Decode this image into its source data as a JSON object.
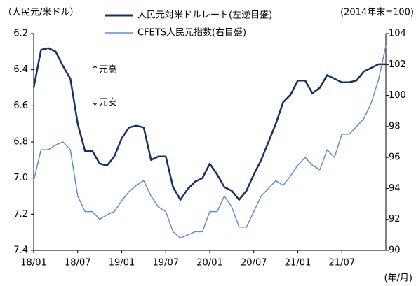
{
  "chart_data": {
    "type": "line",
    "y_label": "（人民元/米ドル）",
    "y2_label": "(2014年末=100)",
    "x_label": "(年/月)",
    "annotations": [
      "↑元高",
      "↓元安"
    ],
    "categories": [
      "18/01",
      null,
      null,
      null,
      null,
      null,
      "18/07",
      null,
      null,
      null,
      null,
      null,
      "19/01",
      null,
      null,
      null,
      null,
      null,
      "19/07",
      null,
      null,
      null,
      null,
      null,
      "20/01",
      null,
      null,
      null,
      null,
      null,
      "20/07",
      null,
      null,
      null,
      null,
      null,
      "21/01",
      null,
      null,
      null,
      null,
      null,
      "21/07",
      null,
      null,
      null,
      null,
      null,
      null
    ],
    "ylim": [
      7.4,
      6.2
    ],
    "yticks": [
      6.2,
      6.4,
      6.6,
      6.8,
      {
        "value": 7,
        "label": "7.0"
      },
      7.2,
      7.4
    ],
    "y2lim": [
      90,
      104
    ],
    "y2ticks": [
      90,
      92,
      94,
      96,
      98,
      100,
      102,
      104
    ],
    "series": [
      {
        "name": "人民元対米ドルレート(左逆目盛)",
        "color": "#14306a",
        "values": [
          6.5,
          6.29,
          6.28,
          6.3,
          6.38,
          6.45,
          6.7,
          6.85,
          6.85,
          6.92,
          6.93,
          6.88,
          6.78,
          6.72,
          6.71,
          6.72,
          6.9,
          6.88,
          6.88,
          7.05,
          7.12,
          7.06,
          7.02,
          7.0,
          6.92,
          6.98,
          7.05,
          7.07,
          7.12,
          7.07,
          6.98,
          6.9,
          6.8,
          6.7,
          6.58,
          6.54,
          6.46,
          6.46,
          6.53,
          6.5,
          6.43,
          6.45,
          6.47,
          6.47,
          6.46,
          6.41,
          6.39,
          6.37,
          6.37
        ]
      },
      {
        "name": "CFETS人民元指数(右目盛)",
        "color": "#5b8fd6",
        "axis": "y2",
        "values": [
          94.5,
          96.5,
          96.5,
          96.8,
          97.0,
          96.5,
          93.5,
          92.5,
          92.5,
          92.0,
          92.3,
          92.5,
          93.2,
          93.8,
          94.2,
          94.5,
          93.5,
          92.8,
          92.5,
          91.2,
          90.8,
          91.0,
          91.2,
          91.2,
          92.5,
          92.5,
          93.5,
          92.8,
          91.5,
          91.5,
          92.5,
          93.5,
          94.0,
          94.5,
          94.2,
          94.8,
          95.5,
          96.0,
          95.5,
          95.2,
          96.5,
          96.0,
          97.5,
          97.5,
          98.0,
          98.5,
          99.5,
          101.0,
          103.2
        ]
      }
    ]
  }
}
